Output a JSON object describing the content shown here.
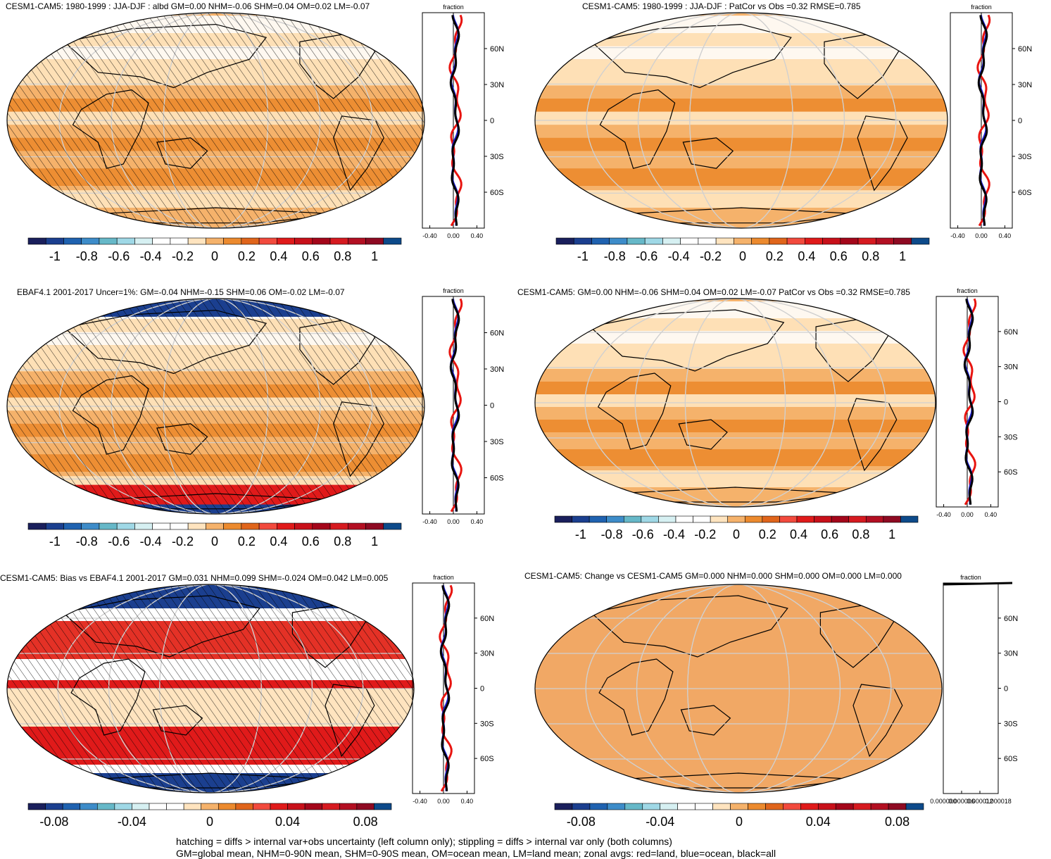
{
  "footer": {
    "line1": "hatching = diffs > internal var+obs uncertainty (left column only); stippling = diffs > internal var only (both columns)",
    "line2": "GM=global mean, NHM=0-90N mean, SHM=0-90S mean, OM=ocean mean, LM=land mean; zonal avgs: red=land, blue=ocean, black=all"
  },
  "colors": {
    "land_line": "#e8140f",
    "ocean_line": "#1f1fd6",
    "all_line": "#000000",
    "scale": [
      "#1a1f5c",
      "#1b3f8f",
      "#1f62b0",
      "#3d8cc9",
      "#66b8c8",
      "#9fd8e6",
      "#d6f0f2",
      "#ffffff",
      "#ffffff",
      "#ffe4bf",
      "#f5b26b",
      "#ec8a2e",
      "#e0651b",
      "#f24a3d",
      "#e01a1a",
      "#c8101a",
      "#a4061a",
      "#d61a20",
      "#b30f22",
      "#8e0a22",
      "#0d4a8a"
    ]
  },
  "chart_data": [
    {
      "type": "heatmap",
      "title": "CESM1-CAM5: 1980-1999 : JJA-DJF : albd GM=0.00 NHM=-0.06 SHM=0.04 OM=0.02 LM=-0.07",
      "colorbar_ticks": [
        "-1",
        "-0.8",
        "-0.6",
        "-0.4",
        "-0.2",
        "0",
        "0.2",
        "0.4",
        "0.6",
        "0.8",
        "1"
      ],
      "zonal_xlabel": "fraction",
      "zonal_xticks": [
        "-0.40",
        "0.00",
        "0.40"
      ],
      "zonal_yticks": [
        "60N",
        "30N",
        "0",
        "30S",
        "60S"
      ],
      "hatching": true,
      "field_style": "model"
    },
    {
      "type": "heatmap",
      "title": "CESM1-CAM5: 1980-1999 : JJA-DJF : PatCor vs Obs =0.32 RMSE=0.785",
      "colorbar_ticks": [
        "-1",
        "-0.8",
        "-0.6",
        "-0.4",
        "-0.2",
        "0",
        "0.2",
        "0.4",
        "0.6",
        "0.8",
        "1"
      ],
      "zonal_xlabel": "fraction",
      "zonal_xticks": [
        "-0.40",
        "0.00",
        "0.40"
      ],
      "zonal_yticks": [
        "60N",
        "30N",
        "0",
        "30S",
        "60S"
      ],
      "hatching": false,
      "field_style": "model"
    },
    {
      "type": "heatmap",
      "title": "EBAF4.1 2001-2017 Uncer=1%: GM=-0.04 NHM=-0.15 SHM=0.06 OM=-0.02 LM=-0.07",
      "colorbar_ticks": [
        "-1",
        "-0.8",
        "-0.6",
        "-0.4",
        "-0.2",
        "0",
        "0.2",
        "0.4",
        "0.6",
        "0.8",
        "1"
      ],
      "zonal_xlabel": "fraction",
      "zonal_xticks": [
        "-0.40",
        "0.00",
        "0.40"
      ],
      "zonal_yticks": [
        "60N",
        "30N",
        "0",
        "30S",
        "60S"
      ],
      "hatching": true,
      "field_style": "obs"
    },
    {
      "type": "heatmap",
      "title": "CESM1-CAM5: GM=0.00 NHM=-0.06 SHM=0.04 OM=0.02 LM=-0.07 PatCor vs Obs =0.32 RMSE=0.785",
      "colorbar_ticks": [
        "-1",
        "-0.8",
        "-0.6",
        "-0.4",
        "-0.2",
        "0",
        "0.2",
        "0.4",
        "0.6",
        "0.8",
        "1"
      ],
      "zonal_xlabel": "fraction",
      "zonal_xticks": [
        "-0.40",
        "0.00",
        "0.40"
      ],
      "zonal_yticks": [
        "60N",
        "30N",
        "0",
        "30S",
        "60S"
      ],
      "hatching": false,
      "field_style": "model"
    },
    {
      "type": "heatmap",
      "title": "CESM1-CAM5: Bias vs EBAF4.1 2001-2017 GM=0.031 NHM=0.099 SHM=-0.024 OM=0.042 LM=0.005",
      "colorbar_ticks": [
        "-0.08",
        "-0.04",
        "0",
        "0.04",
        "0.08"
      ],
      "zonal_xlabel": "fraction",
      "zonal_xticks": [
        "-0.40",
        "0.00",
        "0.40"
      ],
      "zonal_yticks": [
        "60N",
        "30N",
        "0",
        "30S",
        "60S"
      ],
      "hatching": true,
      "field_style": "bias"
    },
    {
      "type": "heatmap",
      "title": "CESM1-CAM5: Change vs CESM1-CAM5 GM=0.000 NHM=0.000 SHM=0.000 OM=0.000 LM=0.000",
      "colorbar_ticks": [
        "-0.08",
        "-0.04",
        "0",
        "0.04",
        "0.08"
      ],
      "zonal_xlabel": "fraction",
      "zonal_xticks": [
        "0.000000",
        "0.000006",
        "0.000012",
        "0.000018"
      ],
      "zonal_yticks": [
        "60N",
        "30N",
        "0",
        "30S",
        "60S"
      ],
      "hatching": false,
      "field_style": "flat"
    }
  ]
}
